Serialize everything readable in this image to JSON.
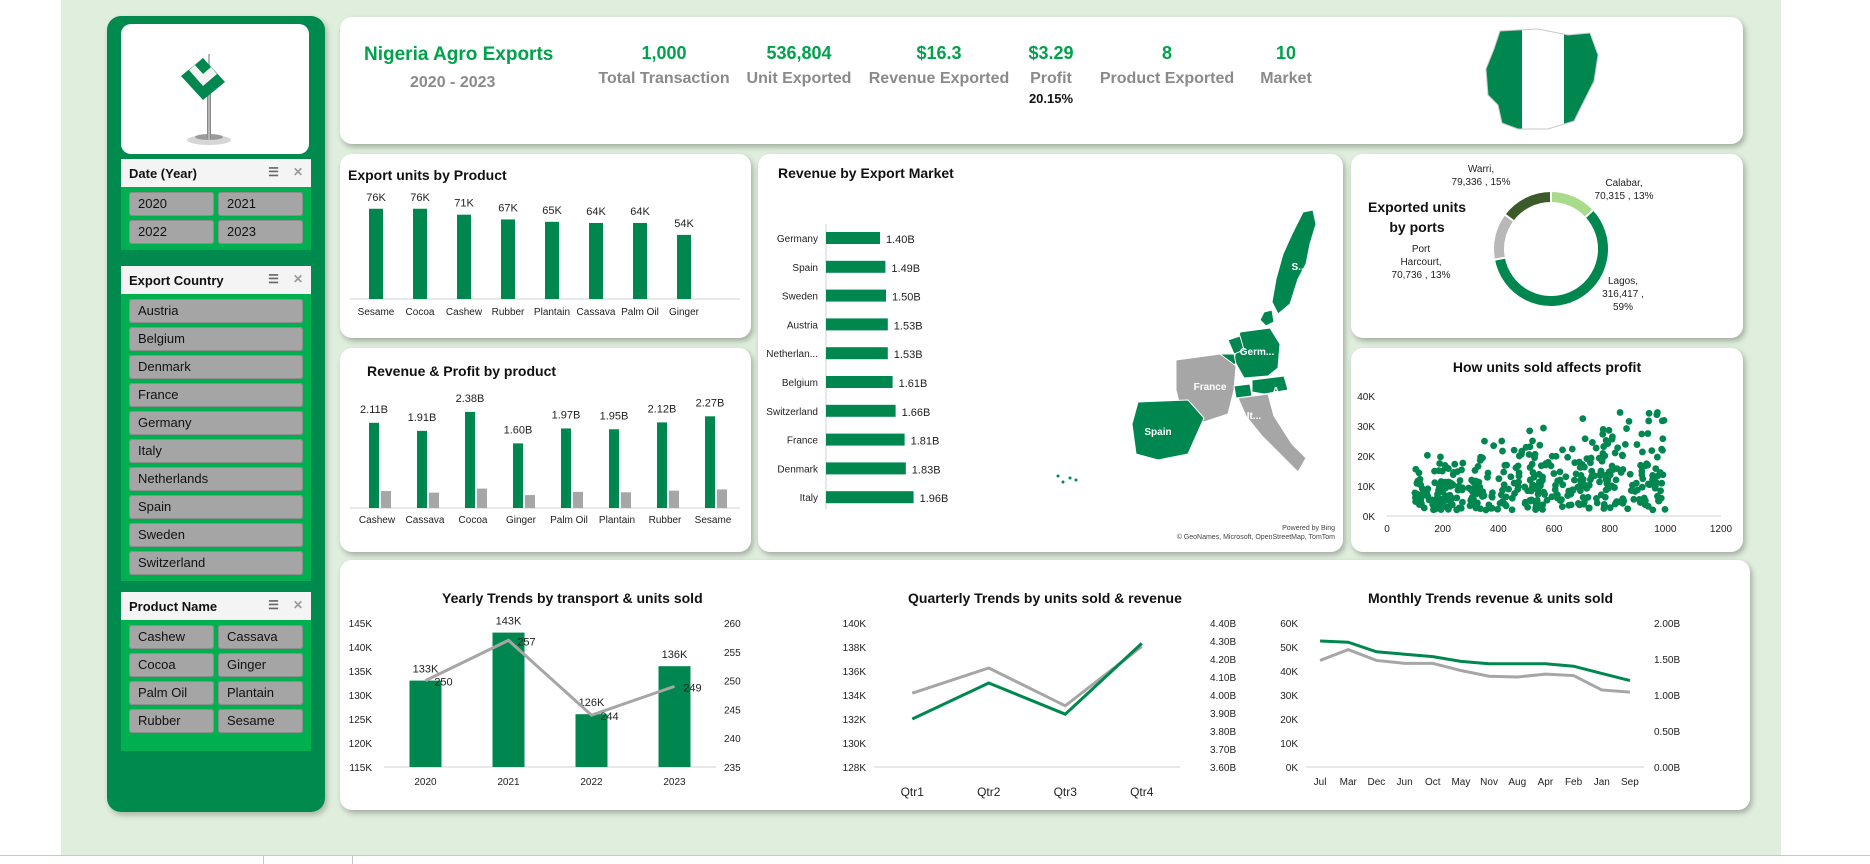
{
  "colors": {
    "green": "#00874f",
    "green_dark": "#3d5a2a",
    "green_light": "#a9dc8a",
    "gray": "#a6a6a6",
    "accent": "#00a24b"
  },
  "sidebar": {
    "date_slicer": {
      "title": "Date (Year)",
      "items": [
        "2020",
        "2021",
        "2022",
        "2023"
      ]
    },
    "country_slicer": {
      "title": "Export Country",
      "items": [
        "Austria",
        "Belgium",
        "Denmark",
        "France",
        "Germany",
        "Italy",
        "Netherlands",
        "Spain",
        "Sweden",
        "Switzerland"
      ]
    },
    "product_slicer": {
      "title": "Product Name",
      "items": [
        "Cashew",
        "Cassava",
        "Cocoa",
        "Ginger",
        "Palm Oil",
        "Plantain",
        "Rubber",
        "Sesame"
      ]
    }
  },
  "header": {
    "title": "Nigeria Agro Exports",
    "subtitle": "2020 - 2023",
    "kpis": [
      {
        "value": "1,000",
        "label": "Total Transaction"
      },
      {
        "value": "536,804",
        "label": "Unit Exported"
      },
      {
        "value": "$16.3",
        "label": "Revenue Exported"
      },
      {
        "value": "$3.29",
        "label": "Profit",
        "sub": "20.15%"
      },
      {
        "value": "8",
        "label": "Product Exported"
      },
      {
        "value": "10",
        "label": "Market"
      }
    ]
  },
  "chart_data": [
    {
      "id": "units_by_product",
      "type": "bar",
      "title": "Export units by Product",
      "categories": [
        "Sesame",
        "Cocoa",
        "Cashew",
        "Rubber",
        "Plantain",
        "Cassava",
        "Palm Oil",
        "Ginger"
      ],
      "values": [
        76,
        76,
        71,
        67,
        65,
        64,
        64,
        54
      ],
      "data_labels": [
        "76K",
        "76K",
        "71K",
        "67K",
        "65K",
        "64K",
        "64K",
        "54K"
      ],
      "ylim": [
        0,
        80
      ]
    },
    {
      "id": "rev_profit",
      "type": "bar",
      "title": "Revenue & Profit by product",
      "categories": [
        "Cashew",
        "Cassava",
        "Cocoa",
        "Ginger",
        "Palm Oil",
        "Plantain",
        "Rubber",
        "Sesame"
      ],
      "series": [
        {
          "values": [
            2.11,
            1.91,
            2.38,
            1.6,
            1.97,
            1.95,
            2.12,
            2.27
          ]
        },
        {
          "values": [
            0.42,
            0.38,
            0.48,
            0.32,
            0.4,
            0.39,
            0.43,
            0.46
          ]
        }
      ],
      "data_labels": [
        "2.11B",
        "1.91B",
        "2.38B",
        "1.60B",
        "1.97B",
        "1.95B",
        "2.12B",
        "2.27B"
      ],
      "ylim": [
        0,
        2.6
      ]
    },
    {
      "id": "rev_by_market",
      "type": "bar",
      "title": "Revenue by Export Market",
      "orientation": "horizontal",
      "categories": [
        "Germany",
        "Spain",
        "Sweden",
        "Austria",
        "Netherlan...",
        "Belgium",
        "Switzerland",
        "France",
        "Denmark",
        "Italy"
      ],
      "values": [
        1.4,
        1.49,
        1.5,
        1.53,
        1.53,
        1.61,
        1.66,
        1.81,
        1.83,
        1.96
      ],
      "data_labels": [
        "1.40B",
        "1.49B",
        "1.50B",
        "1.53B",
        "1.53B",
        "1.61B",
        "1.66B",
        "1.81B",
        "1.83B",
        "1.96B"
      ],
      "map_labels": [
        "S...",
        "Germ...",
        "France",
        "A...",
        "It...",
        "Spain"
      ],
      "attribution": [
        "Powered by Bing",
        "© GeoNames, Microsoft, OpenStreetMap, TomTom"
      ]
    },
    {
      "id": "units_by_ports",
      "type": "pie",
      "title": "Exported units by ports",
      "slices": [
        {
          "name": "Lagos",
          "value": 316417,
          "pct": 59,
          "label": [
            "Lagos,",
            "316,417 ,",
            "59%"
          ]
        },
        {
          "name": "Port Harcourt",
          "value": 70736,
          "pct": 13,
          "label": [
            "Port",
            "Harcourt,",
            "70,736 , 13%"
          ]
        },
        {
          "name": "Warri",
          "value": 79336,
          "pct": 15,
          "label": [
            "Warri,",
            "79,336 , 15%"
          ]
        },
        {
          "name": "Calabar",
          "value": 70315,
          "pct": 13,
          "label": [
            "Calabar,",
            "70,315 , 13%"
          ]
        }
      ]
    },
    {
      "id": "units_vs_profit",
      "type": "scatter",
      "title": "How units sold affects profit",
      "xlim": [
        0,
        1200
      ],
      "ylim": [
        0,
        40000
      ],
      "xticks": [
        "0",
        "200",
        "400",
        "600",
        "800",
        "1000",
        "1200"
      ],
      "yticks": [
        "0K",
        "10K",
        "20K",
        "30K",
        "40K"
      ]
    },
    {
      "id": "yearly_trends",
      "type": "bar",
      "title": "Yearly Trends by transport & units sold",
      "categories": [
        "2020",
        "2021",
        "2022",
        "2023"
      ],
      "series": [
        {
          "values": [
            133,
            143,
            126,
            136
          ],
          "labels": [
            "133K",
            "143K",
            "126K",
            "136K"
          ]
        },
        {
          "values": [
            250,
            257,
            244,
            249
          ],
          "labels": [
            "250",
            "257",
            "244",
            "249"
          ]
        }
      ],
      "ylim": [
        115,
        145
      ],
      "y2lim": [
        235,
        260
      ],
      "yticks": [
        "115K",
        "120K",
        "125K",
        "130K",
        "135K",
        "140K",
        "145K"
      ],
      "y2ticks": [
        "235",
        "240",
        "245",
        "250",
        "255",
        "260"
      ]
    },
    {
      "id": "quarterly_trends",
      "type": "line",
      "title": "Quarterly Trends by units sold & revenue",
      "categories": [
        "Qtr1",
        "Qtr2",
        "Qtr3",
        "Qtr4"
      ],
      "series": [
        {
          "values": [
            132,
            135,
            132.4,
            138.3
          ]
        },
        {
          "values": [
            4.01,
            4.15,
            3.94,
            4.27
          ]
        }
      ],
      "ylim": [
        128,
        140
      ],
      "y2lim": [
        3.6,
        4.4
      ],
      "yticks": [
        "128K",
        "130K",
        "132K",
        "134K",
        "136K",
        "138K",
        "140K"
      ],
      "y2ticks": [
        "3.60B",
        "3.70B",
        "3.80B",
        "3.90B",
        "4.00B",
        "4.10B",
        "4.20B",
        "4.30B",
        "4.40B"
      ]
    },
    {
      "id": "monthly_trends",
      "type": "line",
      "title": "Monthly Trends revenue & units sold",
      "categories": [
        "Jul",
        "Mar",
        "Dec",
        "Jun",
        "Oct",
        "May",
        "Nov",
        "Aug",
        "Apr",
        "Feb",
        "Jan",
        "Sep"
      ],
      "series": [
        {
          "values": [
            52.5,
            52,
            48,
            47,
            46,
            44,
            43,
            43,
            43,
            42,
            39,
            36
          ]
        },
        {
          "values": [
            1.48,
            1.63,
            1.48,
            1.44,
            1.44,
            1.34,
            1.26,
            1.25,
            1.29,
            1.27,
            1.07,
            1.04
          ]
        }
      ],
      "ylim": [
        0,
        60
      ],
      "y2lim": [
        0,
        2
      ],
      "yticks": [
        "0K",
        "10K",
        "20K",
        "30K",
        "40K",
        "50K",
        "60K"
      ],
      "y2ticks": [
        "0.00B",
        "0.50B",
        "1.00B",
        "1.50B",
        "2.00B"
      ]
    }
  ]
}
